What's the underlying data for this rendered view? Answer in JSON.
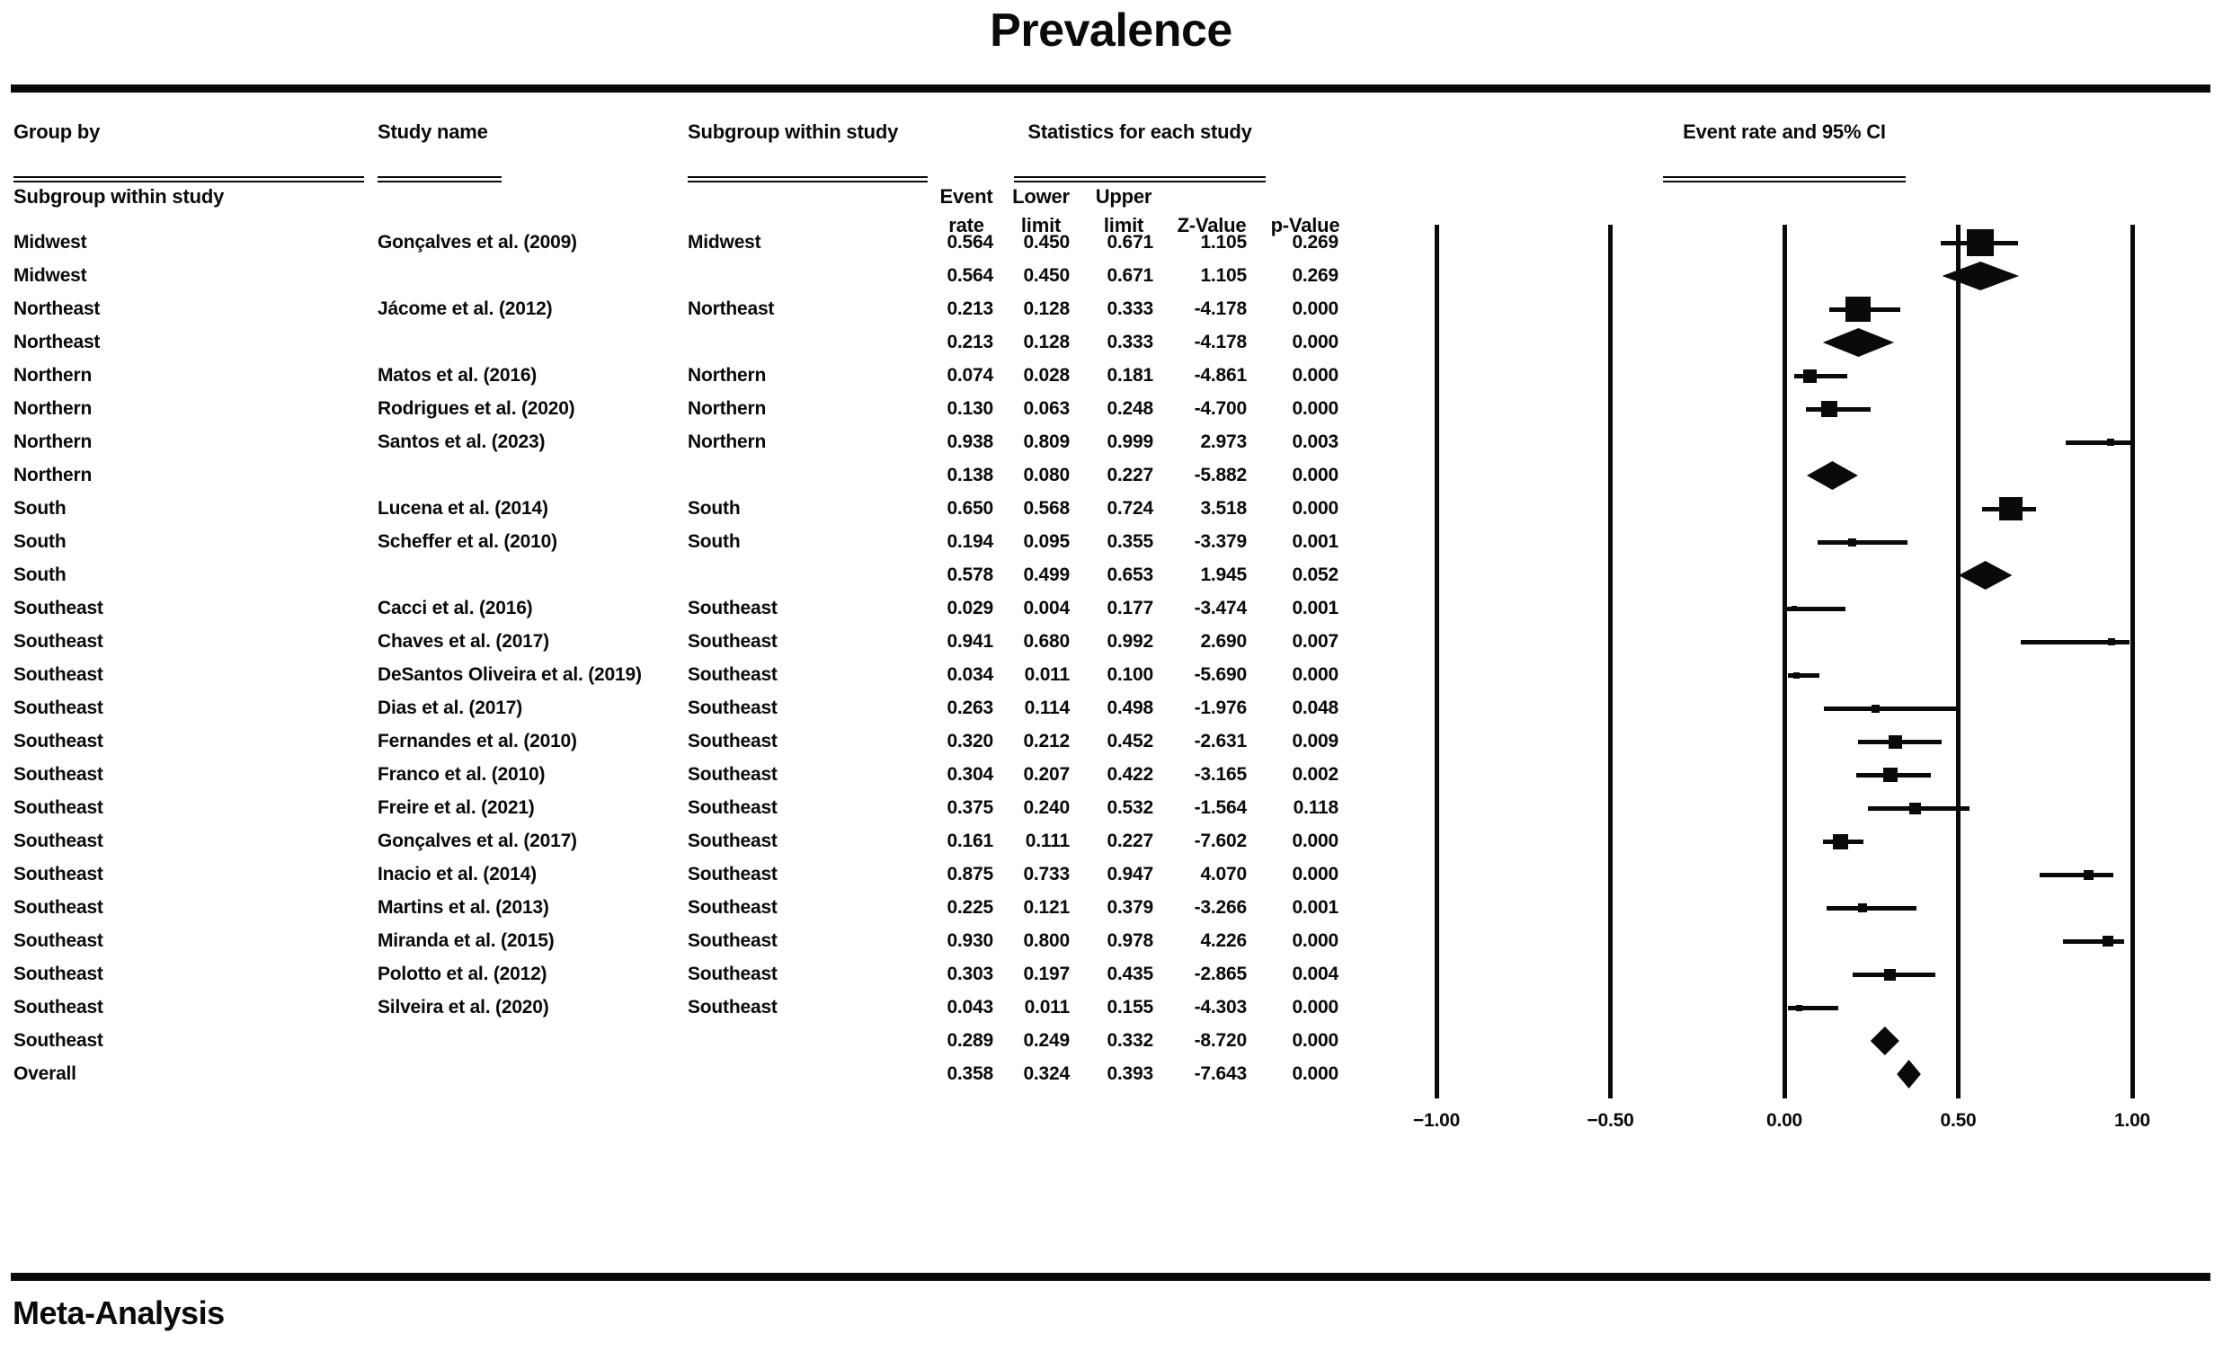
{
  "title": "Prevalence",
  "footer": "Meta-Analysis",
  "table": {
    "col_group": "Group by",
    "col_group_line2": "Subgroup within study",
    "col_study": "Study name",
    "col_subgroup": "Subgroup within study",
    "col_stats": "Statistics for each study",
    "stat_head": {
      "event": "Event",
      "rate": "rate",
      "lower": "Lower",
      "limit_lower": "limit",
      "upper": "Upper",
      "limit_upper": "limit",
      "z": "Z-Value",
      "p": "p-Value"
    }
  },
  "colors": {
    "ink": "#0a0a0a",
    "paper": "#ffffff"
  },
  "chart_data": {
    "type": "scatter",
    "subtype": "forest-plot",
    "title": "Prevalence",
    "header": "Event rate and 95% CI",
    "xlim": [
      -1,
      1
    ],
    "grid": "vertical-lines-at-ticks",
    "legend": "none",
    "x_ticks": [
      {
        "label": "−1.00",
        "value": -1.0
      },
      {
        "label": "−0.50",
        "value": -0.5
      },
      {
        "label": "0.00",
        "value": 0.0
      },
      {
        "label": "0.50",
        "value": 0.5
      },
      {
        "label": "1.00",
        "value": 1.0
      }
    ],
    "rows": [
      {
        "group": "Midwest",
        "study": "Gonçalves et al. (2009)",
        "subgroup": "Midwest",
        "event_rate": "0.564",
        "lower_limit": "0.450",
        "upper_limit": "0.671",
        "z_value": "1.105",
        "p_value": "0.269",
        "kind": "study",
        "weight": 30
      },
      {
        "group": "Midwest",
        "study": "",
        "subgroup": "",
        "event_rate": "0.564",
        "lower_limit": "0.450",
        "upper_limit": "0.671",
        "z_value": "1.105",
        "p_value": "0.269",
        "kind": "summary",
        "weight": 0
      },
      {
        "group": "Northeast",
        "study": "Jácome et al. (2012)",
        "subgroup": "Northeast",
        "event_rate": "0.213",
        "lower_limit": "0.128",
        "upper_limit": "0.333",
        "z_value": "-4.178",
        "p_value": "0.000",
        "kind": "study",
        "weight": 28
      },
      {
        "group": "Northeast",
        "study": "",
        "subgroup": "",
        "event_rate": "0.213",
        "lower_limit": "0.128",
        "upper_limit": "0.333",
        "z_value": "-4.178",
        "p_value": "0.000",
        "kind": "summary",
        "weight": 0
      },
      {
        "group": "Northern",
        "study": "Matos et al. (2016)",
        "subgroup": "Northern",
        "event_rate": "0.074",
        "lower_limit": "0.028",
        "upper_limit": "0.181",
        "z_value": "-4.861",
        "p_value": "0.000",
        "kind": "study",
        "weight": 15
      },
      {
        "group": "Northern",
        "study": "Rodrigues et al. (2020)",
        "subgroup": "Northern",
        "event_rate": "0.130",
        "lower_limit": "0.063",
        "upper_limit": "0.248",
        "z_value": "-4.700",
        "p_value": "0.000",
        "kind": "study",
        "weight": 18
      },
      {
        "group": "Northern",
        "study": "Santos et al. (2023)",
        "subgroup": "Northern",
        "event_rate": "0.938",
        "lower_limit": "0.809",
        "upper_limit": "0.999",
        "z_value": "2.973",
        "p_value": "0.003",
        "kind": "study",
        "weight": 8
      },
      {
        "group": "Northern",
        "study": "",
        "subgroup": "",
        "event_rate": "0.138",
        "lower_limit": "0.080",
        "upper_limit": "0.227",
        "z_value": "-5.882",
        "p_value": "0.000",
        "kind": "summary",
        "weight": 0
      },
      {
        "group": "South",
        "study": "Lucena et al. (2014)",
        "subgroup": "South",
        "event_rate": "0.650",
        "lower_limit": "0.568",
        "upper_limit": "0.724",
        "z_value": "3.518",
        "p_value": "0.000",
        "kind": "study",
        "weight": 26
      },
      {
        "group": "South",
        "study": "Scheffer et al. (2010)",
        "subgroup": "South",
        "event_rate": "0.194",
        "lower_limit": "0.095",
        "upper_limit": "0.355",
        "z_value": "-3.379",
        "p_value": "0.001",
        "kind": "study",
        "weight": 9
      },
      {
        "group": "South",
        "study": "",
        "subgroup": "",
        "event_rate": "0.578",
        "lower_limit": "0.499",
        "upper_limit": "0.653",
        "z_value": "1.945",
        "p_value": "0.052",
        "kind": "summary",
        "weight": 0
      },
      {
        "group": "Southeast",
        "study": "Cacci et al. (2016)",
        "subgroup": "Southeast",
        "event_rate": "0.029",
        "lower_limit": "0.004",
        "upper_limit": "0.177",
        "z_value": "-3.474",
        "p_value": "0.001",
        "kind": "study",
        "weight": 6
      },
      {
        "group": "Southeast",
        "study": "Chaves et al. (2017)",
        "subgroup": "Southeast",
        "event_rate": "0.941",
        "lower_limit": "0.680",
        "upper_limit": "0.992",
        "z_value": "2.690",
        "p_value": "0.007",
        "kind": "study",
        "weight": 8
      },
      {
        "group": "Southeast",
        "study": "DeSantos Oliveira et al. (2019)",
        "subgroup": "Southeast",
        "event_rate": "0.034",
        "lower_limit": "0.011",
        "upper_limit": "0.100",
        "z_value": "-5.690",
        "p_value": "0.000",
        "kind": "study",
        "weight": 7
      },
      {
        "group": "Southeast",
        "study": "Dias et al. (2017)",
        "subgroup": "Southeast",
        "event_rate": "0.263",
        "lower_limit": "0.114",
        "upper_limit": "0.498",
        "z_value": "-1.976",
        "p_value": "0.048",
        "kind": "study",
        "weight": 9
      },
      {
        "group": "Southeast",
        "study": "Fernandes et al. (2010)",
        "subgroup": "Southeast",
        "event_rate": "0.320",
        "lower_limit": "0.212",
        "upper_limit": "0.452",
        "z_value": "-2.631",
        "p_value": "0.009",
        "kind": "study",
        "weight": 15
      },
      {
        "group": "Southeast",
        "study": "Franco et al. (2010)",
        "subgroup": "Southeast",
        "event_rate": "0.304",
        "lower_limit": "0.207",
        "upper_limit": "0.422",
        "z_value": "-3.165",
        "p_value": "0.002",
        "kind": "study",
        "weight": 16
      },
      {
        "group": "Southeast",
        "study": "Freire et al. (2021)",
        "subgroup": "Southeast",
        "event_rate": "0.375",
        "lower_limit": "0.240",
        "upper_limit": "0.532",
        "z_value": "-1.564",
        "p_value": "0.118",
        "kind": "study",
        "weight": 13
      },
      {
        "group": "Southeast",
        "study": "Gonçalves et al. (2017)",
        "subgroup": "Southeast",
        "event_rate": "0.161",
        "lower_limit": "0.111",
        "upper_limit": "0.227",
        "z_value": "-7.602",
        "p_value": "0.000",
        "kind": "study",
        "weight": 17
      },
      {
        "group": "Southeast",
        "study": "Inacio et al. (2014)",
        "subgroup": "Southeast",
        "event_rate": "0.875",
        "lower_limit": "0.733",
        "upper_limit": "0.947",
        "z_value": "4.070",
        "p_value": "0.000",
        "kind": "study",
        "weight": 11
      },
      {
        "group": "Southeast",
        "study": "Martins et al. (2013)",
        "subgroup": "Southeast",
        "event_rate": "0.225",
        "lower_limit": "0.121",
        "upper_limit": "0.379",
        "z_value": "-3.266",
        "p_value": "0.001",
        "kind": "study",
        "weight": 10
      },
      {
        "group": "Southeast",
        "study": "Miranda et al. (2015)",
        "subgroup": "Southeast",
        "event_rate": "0.930",
        "lower_limit": "0.800",
        "upper_limit": "0.978",
        "z_value": "4.226",
        "p_value": "0.000",
        "kind": "study",
        "weight": 12
      },
      {
        "group": "Southeast",
        "study": "Polotto et al. (2012)",
        "subgroup": "Southeast",
        "event_rate": "0.303",
        "lower_limit": "0.197",
        "upper_limit": "0.435",
        "z_value": "-2.865",
        "p_value": "0.004",
        "kind": "study",
        "weight": 13
      },
      {
        "group": "Southeast",
        "study": "Silveira et al. (2020)",
        "subgroup": "Southeast",
        "event_rate": "0.043",
        "lower_limit": "0.011",
        "upper_limit": "0.155",
        "z_value": "-4.303",
        "p_value": "0.000",
        "kind": "study",
        "weight": 7
      },
      {
        "group": "Southeast",
        "study": "",
        "subgroup": "",
        "event_rate": "0.289",
        "lower_limit": "0.249",
        "upper_limit": "0.332",
        "z_value": "-8.720",
        "p_value": "0.000",
        "kind": "summary",
        "weight": 0
      },
      {
        "group": "Overall",
        "study": "",
        "subgroup": "",
        "event_rate": "0.358",
        "lower_limit": "0.324",
        "upper_limit": "0.393",
        "z_value": "-7.643",
        "p_value": "0.000",
        "kind": "summary",
        "weight": 0
      }
    ]
  }
}
